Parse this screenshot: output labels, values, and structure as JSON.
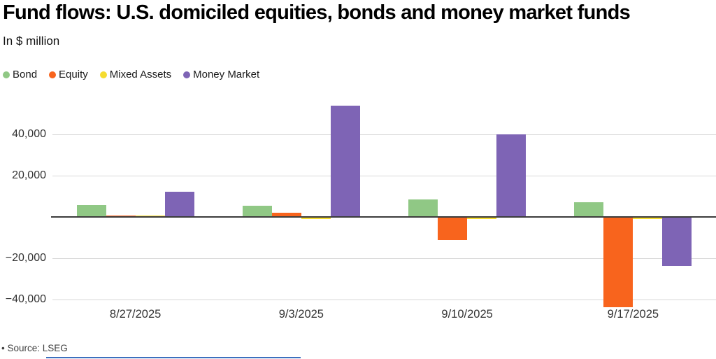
{
  "header": {
    "title": "Fund flows: U.S. domiciled equities, bonds and money market funds",
    "subtitle": "In $ million"
  },
  "legend": [
    {
      "label": "Bond",
      "color": "#90c885"
    },
    {
      "label": "Equity",
      "color": "#f8641d"
    },
    {
      "label": "Mixed Assets",
      "color": "#f5dc30"
    },
    {
      "label": "Money Market",
      "color": "#7e64b5"
    }
  ],
  "chart_data": {
    "type": "bar",
    "title": "Fund flows: U.S. domiciled equities, bonds and money market funds",
    "subtitle": "In $ million",
    "unit": "$ million",
    "categories": [
      "8/27/2025",
      "9/3/2025",
      "9/10/2025",
      "9/17/2025"
    ],
    "series": [
      {
        "name": "Bond",
        "color": "#90c885",
        "values": [
          5800,
          5600,
          8400,
          7300
        ]
      },
      {
        "name": "Equity",
        "color": "#f8641d",
        "values": [
          800,
          2100,
          -10900,
          -43400
        ]
      },
      {
        "name": "Mixed Assets",
        "color": "#f5dc30",
        "values": [
          200,
          -400,
          -300,
          -500
        ]
      },
      {
        "name": "Money Market",
        "color": "#7e64b5",
        "values": [
          12300,
          54000,
          40300,
          -23600
        ]
      }
    ],
    "yticks": [
      {
        "value": 40000,
        "label": "40,000"
      },
      {
        "value": 20000,
        "label": "20,000"
      },
      {
        "value": -20000,
        "label": "−20,000"
      },
      {
        "value": -40000,
        "label": "−40,000"
      }
    ],
    "ylim": [
      -48000,
      58000
    ],
    "grid": true,
    "legend_position": "top-left",
    "grid_color": "#d8d8d8",
    "zero_line_color": "#3c3c3c",
    "tick_label_color": "#333333"
  },
  "footer": {
    "source": "• Source: LSEG",
    "accent_line_color": "#3d6fbe"
  }
}
